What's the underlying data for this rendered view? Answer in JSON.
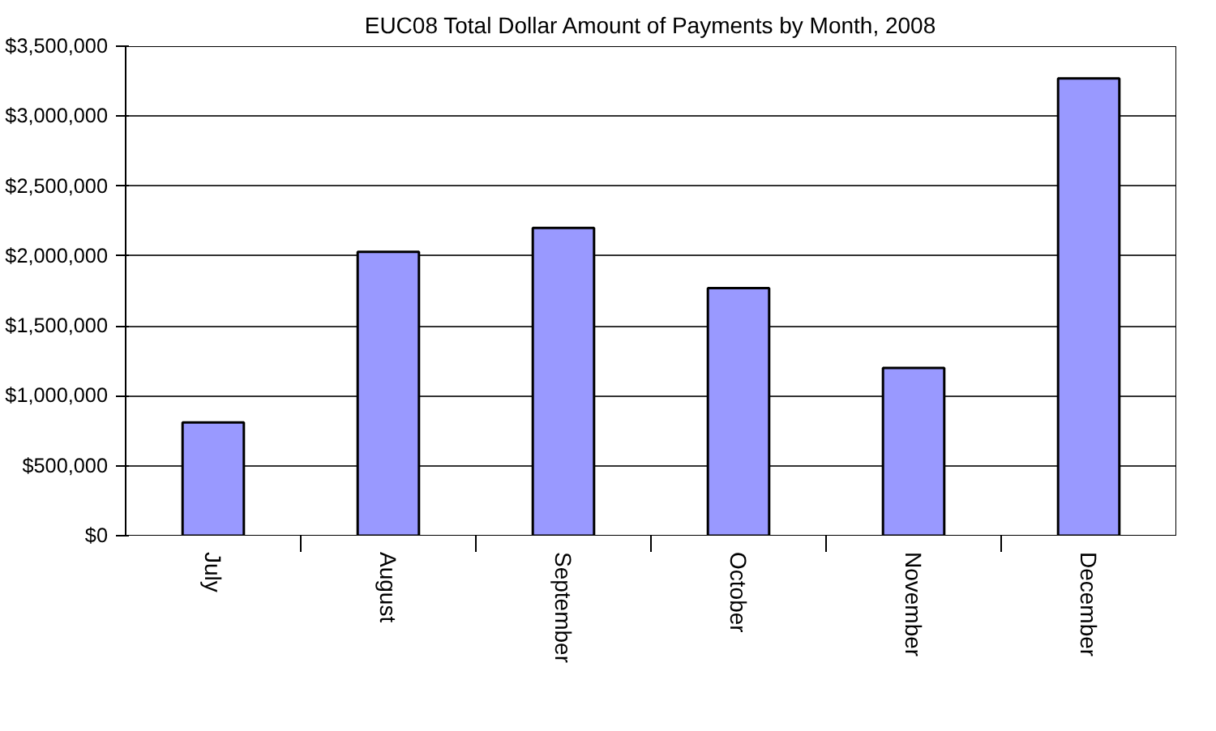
{
  "chart_data": {
    "type": "bar",
    "title": "EUC08 Total Dollar Amount of Payments by Month, 2008",
    "categories": [
      "July",
      "August",
      "September",
      "October",
      "November",
      "December"
    ],
    "values": [
      810000,
      2030000,
      2200000,
      1770000,
      1200000,
      3270000
    ],
    "color": "#9999ff",
    "ylim": [
      0,
      3500000
    ],
    "yticks": [
      {
        "value": 0,
        "label": "$0"
      },
      {
        "value": 500000,
        "label": "$500,000"
      },
      {
        "value": 1000000,
        "label": "$1,000,000"
      },
      {
        "value": 1500000,
        "label": "$1,500,000"
      },
      {
        "value": 2000000,
        "label": "$2,000,000"
      },
      {
        "value": 2500000,
        "label": "$2,500,000"
      },
      {
        "value": 3000000,
        "label": "$3,000,000"
      },
      {
        "value": 3500000,
        "label": "$3,500,000"
      }
    ],
    "grid": "y"
  }
}
